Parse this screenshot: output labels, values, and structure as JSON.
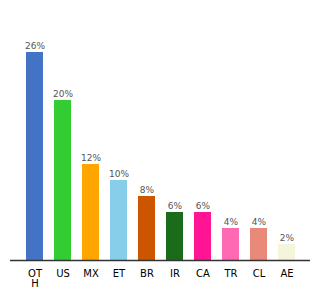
{
  "chart_data": {
    "type": "bar",
    "categories": [
      "OT\nH",
      "US",
      "MX",
      "ET",
      "BR",
      "IR",
      "CA",
      "TR",
      "CL",
      "AE"
    ],
    "values": [
      26,
      20,
      12,
      10,
      8,
      6,
      6,
      4,
      4,
      2
    ],
    "value_labels": [
      "26%",
      "20%",
      "12%",
      "10%",
      "8%",
      "6%",
      "6%",
      "4%",
      "4%",
      "2%"
    ],
    "colors": [
      "#4472C4",
      "#33CC33",
      "#FFA500",
      "#87CEEB",
      "#CC5500",
      "#1A6B1A",
      "#FF1493",
      "#FF69B4",
      "#E8897A",
      "#F5F5DC"
    ],
    "ylim": [
      0,
      30
    ],
    "data_labels": true,
    "grid": false,
    "tick_labels": "x"
  }
}
